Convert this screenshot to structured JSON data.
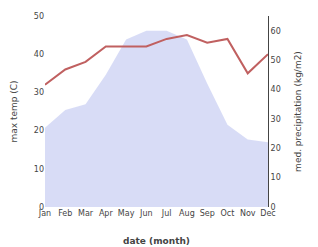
{
  "chart_data": {
    "type": "line",
    "xlabel": "date (month)",
    "ylabel": "max temp (C)",
    "y2label": "med. precipitation (kg/m2)",
    "categories": [
      "Jan",
      "Feb",
      "Mar",
      "Apr",
      "May",
      "Jun",
      "Jul",
      "Aug",
      "Sep",
      "Oct",
      "Nov",
      "Dec"
    ],
    "series": [
      {
        "type": "area",
        "axis": "y2",
        "color": "#b8c0ee",
        "values": [
          27,
          33,
          35,
          45,
          57,
          60,
          60,
          57,
          42,
          28,
          23,
          22
        ]
      },
      {
        "type": "line",
        "color": "#c06060",
        "values": [
          32,
          36,
          38,
          42,
          42,
          42,
          44,
          45,
          43,
          44,
          35,
          40
        ]
      }
    ],
    "ylim": [
      0,
      50
    ],
    "yticks": [
      0,
      10,
      20,
      30,
      40,
      50
    ],
    "y2lim": [
      0,
      65
    ],
    "y2ticks": [
      0,
      10,
      20,
      30,
      40,
      50,
      60
    ],
    "grid": false
  }
}
